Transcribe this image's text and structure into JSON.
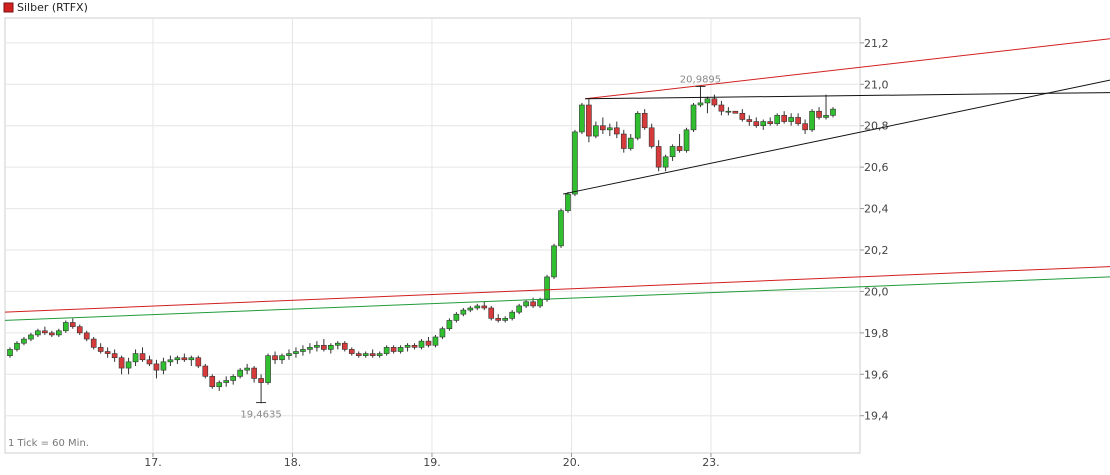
{
  "chart_data": {
    "type": "candlestick",
    "legend": {
      "label": "Silber (RTFX)",
      "color": "#d21f1f",
      "placement": "top-left"
    },
    "footnote": "1 Tick = 60 Min.",
    "ylim": [
      19.22,
      21.32
    ],
    "y_ticks": [
      "21,2",
      "21,0",
      "20,8",
      "20,6",
      "20,4",
      "20,2",
      "20,0",
      "19,8",
      "19,6",
      "19,4"
    ],
    "x_ticks": [
      "17.",
      "18.",
      "19.",
      "20.",
      "23."
    ],
    "grid": true,
    "colors": {
      "up": "#2fbf2f",
      "down": "#d63a3a",
      "wick": "#333333"
    },
    "annotations": [
      {
        "text": "20,9895",
        "value": 20.9895,
        "type": "high"
      },
      {
        "text": "19,4635",
        "value": 19.4635,
        "type": "low"
      }
    ],
    "trendlines": [
      {
        "color": "#d21f1f",
        "from": [
          0,
          19.9
        ],
        "to": [
          1,
          20.12
        ]
      },
      {
        "color": "#1f9a3a",
        "from": [
          0,
          19.86
        ],
        "to": [
          1,
          20.07
        ]
      },
      {
        "color": "#d21f1f",
        "from": [
          0.525,
          20.93
        ],
        "to": [
          1,
          21.22
        ]
      },
      {
        "color": "#111111",
        "from": [
          0.525,
          20.93
        ],
        "to": [
          1,
          20.96
        ]
      },
      {
        "color": "#111111",
        "from": [
          0.505,
          20.47
        ],
        "to": [
          1,
          21.02
        ]
      }
    ],
    "series": [
      {
        "candles": [
          [
            19.69,
            19.73,
            19.68,
            19.72
          ],
          [
            19.72,
            19.76,
            19.71,
            19.75
          ],
          [
            19.75,
            19.78,
            19.74,
            19.77
          ],
          [
            19.77,
            19.8,
            19.76,
            19.79
          ],
          [
            19.79,
            19.82,
            19.78,
            19.81
          ],
          [
            19.81,
            19.83,
            19.79,
            19.8
          ],
          [
            19.8,
            19.81,
            19.78,
            19.79
          ],
          [
            19.79,
            19.82,
            19.78,
            19.81
          ],
          [
            19.81,
            19.86,
            19.8,
            19.85
          ],
          [
            19.85,
            19.87,
            19.82,
            19.83
          ],
          [
            19.83,
            19.84,
            19.79,
            19.8
          ],
          [
            19.8,
            19.81,
            19.76,
            19.77
          ],
          [
            19.77,
            19.78,
            19.72,
            19.73
          ],
          [
            19.73,
            19.75,
            19.7,
            19.71
          ],
          [
            19.71,
            19.73,
            19.68,
            19.7
          ],
          [
            19.7,
            19.72,
            19.66,
            19.68
          ],
          [
            19.68,
            19.69,
            19.6,
            19.63
          ],
          [
            19.63,
            19.68,
            19.6,
            19.66
          ],
          [
            19.66,
            19.72,
            19.64,
            19.7
          ],
          [
            19.7,
            19.73,
            19.66,
            19.67
          ],
          [
            19.67,
            19.69,
            19.64,
            19.65
          ],
          [
            19.65,
            19.67,
            19.58,
            19.62
          ],
          [
            19.62,
            19.68,
            19.6,
            19.66
          ],
          [
            19.66,
            19.69,
            19.64,
            19.67
          ],
          [
            19.67,
            19.69,
            19.65,
            19.68
          ],
          [
            19.68,
            19.7,
            19.66,
            19.67
          ],
          [
            19.67,
            19.69,
            19.64,
            19.68
          ],
          [
            19.68,
            19.69,
            19.63,
            19.64
          ],
          [
            19.64,
            19.65,
            19.58,
            19.59
          ],
          [
            19.59,
            19.6,
            19.53,
            19.54
          ],
          [
            19.54,
            19.57,
            19.52,
            19.56
          ],
          [
            19.56,
            19.59,
            19.54,
            19.57
          ],
          [
            19.57,
            19.6,
            19.55,
            19.59
          ],
          [
            19.59,
            19.63,
            19.58,
            19.62
          ],
          [
            19.62,
            19.65,
            19.6,
            19.63
          ],
          [
            19.63,
            19.64,
            19.56,
            19.58
          ],
          [
            19.58,
            19.6,
            19.46,
            19.56
          ],
          [
            19.56,
            19.7,
            19.55,
            19.69
          ],
          [
            19.69,
            19.71,
            19.65,
            19.67
          ],
          [
            19.67,
            19.7,
            19.65,
            19.69
          ],
          [
            19.69,
            19.72,
            19.67,
            19.7
          ],
          [
            19.7,
            19.73,
            19.68,
            19.71
          ],
          [
            19.71,
            19.74,
            19.69,
            19.72
          ],
          [
            19.72,
            19.75,
            19.7,
            19.73
          ],
          [
            19.73,
            19.76,
            19.71,
            19.74
          ],
          [
            19.74,
            19.77,
            19.71,
            19.72
          ],
          [
            19.72,
            19.75,
            19.7,
            19.74
          ],
          [
            19.74,
            19.76,
            19.72,
            19.75
          ],
          [
            19.75,
            19.76,
            19.71,
            19.72
          ],
          [
            19.72,
            19.73,
            19.69,
            19.7
          ],
          [
            19.7,
            19.71,
            19.68,
            19.69
          ],
          [
            19.69,
            19.71,
            19.68,
            19.7
          ],
          [
            19.7,
            19.72,
            19.68,
            19.69
          ],
          [
            19.69,
            19.71,
            19.68,
            19.7
          ],
          [
            19.7,
            19.74,
            19.69,
            19.73
          ],
          [
            19.73,
            19.74,
            19.7,
            19.71
          ],
          [
            19.71,
            19.74,
            19.7,
            19.73
          ],
          [
            19.73,
            19.75,
            19.71,
            19.74
          ],
          [
            19.74,
            19.75,
            19.72,
            19.73
          ],
          [
            19.73,
            19.77,
            19.72,
            19.76
          ],
          [
            19.76,
            19.78,
            19.73,
            19.74
          ],
          [
            19.74,
            19.79,
            19.73,
            19.78
          ],
          [
            19.78,
            19.83,
            19.77,
            19.82
          ],
          [
            19.82,
            19.87,
            19.81,
            19.86
          ],
          [
            19.86,
            19.9,
            19.85,
            19.89
          ],
          [
            19.89,
            19.92,
            19.88,
            19.91
          ],
          [
            19.91,
            19.93,
            19.9,
            19.92
          ],
          [
            19.92,
            19.94,
            19.91,
            19.93
          ],
          [
            19.93,
            19.95,
            19.91,
            19.92
          ],
          [
            19.92,
            19.93,
            19.86,
            19.87
          ],
          [
            19.87,
            19.89,
            19.85,
            19.86
          ],
          [
            19.86,
            19.88,
            19.85,
            19.87
          ],
          [
            19.87,
            19.91,
            19.86,
            19.9
          ],
          [
            19.9,
            19.94,
            19.89,
            19.93
          ],
          [
            19.93,
            19.96,
            19.92,
            19.95
          ],
          [
            19.95,
            19.97,
            19.92,
            19.93
          ],
          [
            19.93,
            19.97,
            19.92,
            19.96
          ],
          [
            19.96,
            20.08,
            19.95,
            20.07
          ],
          [
            20.07,
            20.23,
            20.06,
            20.22
          ],
          [
            20.22,
            20.4,
            20.21,
            20.39
          ],
          [
            20.39,
            20.48,
            20.38,
            20.47
          ],
          [
            20.47,
            20.78,
            20.46,
            20.77
          ],
          [
            20.77,
            20.91,
            20.76,
            20.9
          ],
          [
            20.9,
            20.93,
            20.72,
            20.75
          ],
          [
            20.75,
            20.82,
            20.74,
            20.8
          ],
          [
            20.8,
            20.84,
            20.76,
            20.78
          ],
          [
            20.78,
            20.81,
            20.75,
            20.79
          ],
          [
            20.79,
            20.82,
            20.74,
            20.76
          ],
          [
            20.76,
            20.78,
            20.67,
            20.69
          ],
          [
            20.69,
            20.76,
            20.68,
            20.74
          ],
          [
            20.74,
            20.87,
            20.73,
            20.86
          ],
          [
            20.86,
            20.88,
            20.78,
            20.79
          ],
          [
            20.79,
            20.81,
            20.69,
            20.7
          ],
          [
            20.7,
            20.73,
            20.58,
            20.6
          ],
          [
            20.6,
            20.66,
            20.58,
            20.65
          ],
          [
            20.65,
            20.71,
            20.63,
            20.7
          ],
          [
            20.7,
            20.76,
            20.67,
            20.68
          ],
          [
            20.68,
            20.79,
            20.67,
            20.78
          ],
          [
            20.78,
            20.91,
            20.77,
            20.9
          ],
          [
            20.9,
            20.99,
            20.89,
            20.91
          ],
          [
            20.91,
            20.94,
            20.86,
            20.93
          ],
          [
            20.93,
            20.95,
            20.89,
            20.9
          ],
          [
            20.9,
            20.92,
            20.85,
            20.87
          ],
          [
            20.87,
            20.89,
            20.85,
            20.87
          ],
          [
            20.87,
            20.87,
            20.86,
            20.86
          ],
          [
            20.86,
            20.88,
            20.82,
            20.83
          ],
          [
            20.83,
            20.85,
            20.8,
            20.82
          ],
          [
            20.82,
            20.84,
            20.79,
            20.8
          ],
          [
            20.8,
            20.83,
            20.78,
            20.82
          ],
          [
            20.82,
            20.84,
            20.8,
            20.81
          ],
          [
            20.81,
            20.86,
            20.8,
            20.85
          ],
          [
            20.85,
            20.87,
            20.81,
            20.82
          ],
          [
            20.82,
            20.86,
            20.8,
            20.84
          ],
          [
            20.84,
            20.86,
            20.8,
            20.81
          ],
          [
            20.81,
            20.83,
            20.76,
            20.78
          ],
          [
            20.78,
            20.88,
            20.77,
            20.87
          ],
          [
            20.87,
            20.89,
            20.83,
            20.84
          ],
          [
            20.84,
            20.95,
            20.83,
            20.85
          ],
          [
            20.85,
            20.89,
            20.84,
            20.88
          ]
        ]
      }
    ]
  }
}
